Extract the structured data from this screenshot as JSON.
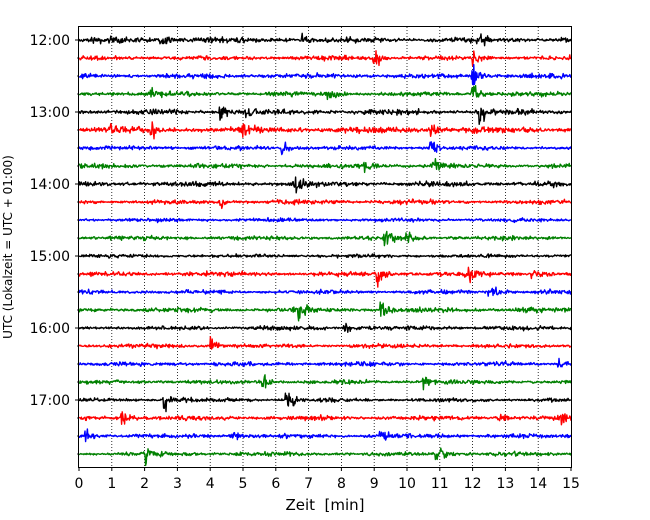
{
  "chart_data": {
    "type": "line",
    "subtype": "helicorder",
    "xlabel": "Zeit  [min]",
    "ylabel": "UTC (Lokalzeit = UTC + 01:00)",
    "xlim": [
      0,
      15
    ],
    "x_ticks": [
      0,
      1,
      2,
      3,
      4,
      5,
      6,
      7,
      8,
      9,
      10,
      11,
      12,
      13,
      14,
      15
    ],
    "y_tick_labels": [
      "12:00",
      "13:00",
      "14:00",
      "15:00",
      "16:00",
      "17:00"
    ],
    "start_time": "12:00",
    "trace_interval_min": 15,
    "trace_count": 24,
    "grid": "vertical-dotted",
    "color_cycle": [
      "#000000",
      "#ff0000",
      "#0000ff",
      "#008000"
    ],
    "traces": [
      {
        "start": "12:00",
        "color": "#000000",
        "noise": 0.25,
        "events": [
          {
            "t": 2.5,
            "amp": 0.55
          },
          {
            "t": 6.8,
            "amp": 0.3
          },
          {
            "t": 12.2,
            "amp": 0.3
          }
        ]
      },
      {
        "start": "12:15",
        "color": "#ff0000",
        "noise": 0.22,
        "events": [
          {
            "t": 9.0,
            "amp": 0.6
          },
          {
            "t": 12.0,
            "amp": 0.35
          }
        ]
      },
      {
        "start": "12:30",
        "color": "#0000ff",
        "noise": 0.24,
        "events": [
          {
            "t": 12.0,
            "amp": 0.6
          }
        ]
      },
      {
        "start": "12:45",
        "color": "#008000",
        "noise": 0.22,
        "events": [
          {
            "t": 2.2,
            "amp": 0.3
          },
          {
            "t": 7.6,
            "amp": 0.45
          },
          {
            "t": 12.0,
            "amp": 0.6
          }
        ]
      },
      {
        "start": "13:00",
        "color": "#000000",
        "noise": 0.25,
        "events": [
          {
            "t": 4.3,
            "amp": 0.45
          },
          {
            "t": 5.1,
            "amp": 0.3
          },
          {
            "t": 12.2,
            "amp": 0.8
          }
        ]
      },
      {
        "start": "13:15",
        "color": "#ff0000",
        "noise": 0.3,
        "events": [
          {
            "t": 1.0,
            "amp": 0.45
          },
          {
            "t": 2.2,
            "amp": 0.4
          },
          {
            "t": 5.0,
            "amp": 0.35
          },
          {
            "t": 10.7,
            "amp": 0.45
          }
        ]
      },
      {
        "start": "13:30",
        "color": "#0000ff",
        "noise": 0.2,
        "events": [
          {
            "t": 6.2,
            "amp": 0.6
          },
          {
            "t": 10.7,
            "amp": 0.6
          }
        ]
      },
      {
        "start": "13:45",
        "color": "#008000",
        "noise": 0.22,
        "events": [
          {
            "t": 8.7,
            "amp": 0.45
          },
          {
            "t": 10.8,
            "amp": 0.5
          }
        ]
      },
      {
        "start": "14:00",
        "color": "#000000",
        "noise": 0.24,
        "events": [
          {
            "t": 6.6,
            "amp": 0.45
          }
        ]
      },
      {
        "start": "14:15",
        "color": "#ff0000",
        "noise": 0.2,
        "events": [
          {
            "t": 4.3,
            "amp": 0.35
          }
        ]
      },
      {
        "start": "14:30",
        "color": "#0000ff",
        "noise": 0.18,
        "events": []
      },
      {
        "start": "14:45",
        "color": "#008000",
        "noise": 0.2,
        "events": [
          {
            "t": 9.3,
            "amp": 0.55
          },
          {
            "t": 10.0,
            "amp": 0.45
          }
        ]
      },
      {
        "start": "15:00",
        "color": "#000000",
        "noise": 0.18,
        "events": []
      },
      {
        "start": "15:15",
        "color": "#ff0000",
        "noise": 0.22,
        "events": [
          {
            "t": 9.1,
            "amp": 0.75
          },
          {
            "t": 11.9,
            "amp": 0.5
          },
          {
            "t": 13.8,
            "amp": 0.45
          }
        ]
      },
      {
        "start": "15:30",
        "color": "#0000ff",
        "noise": 0.2,
        "events": [
          {
            "t": 12.5,
            "amp": 0.55
          }
        ]
      },
      {
        "start": "15:45",
        "color": "#008000",
        "noise": 0.22,
        "events": [
          {
            "t": 6.7,
            "amp": 0.75
          },
          {
            "t": 9.2,
            "amp": 0.5
          }
        ]
      },
      {
        "start": "16:00",
        "color": "#000000",
        "noise": 0.2,
        "events": [
          {
            "t": 8.1,
            "amp": 0.35
          }
        ]
      },
      {
        "start": "16:15",
        "color": "#ff0000",
        "noise": 0.2,
        "events": [
          {
            "t": 4.0,
            "amp": 0.6
          }
        ]
      },
      {
        "start": "16:30",
        "color": "#0000ff",
        "noise": 0.2,
        "events": [
          {
            "t": 14.6,
            "amp": 0.35
          }
        ]
      },
      {
        "start": "16:45",
        "color": "#008000",
        "noise": 0.2,
        "events": [
          {
            "t": 5.6,
            "amp": 0.5
          },
          {
            "t": 10.5,
            "amp": 0.55
          }
        ]
      },
      {
        "start": "17:00",
        "color": "#000000",
        "noise": 0.18,
        "events": [
          {
            "t": 2.6,
            "amp": 0.75
          },
          {
            "t": 6.3,
            "amp": 0.65
          }
        ]
      },
      {
        "start": "17:15",
        "color": "#ff0000",
        "noise": 0.22,
        "events": [
          {
            "t": 1.3,
            "amp": 0.55
          },
          {
            "t": 12.8,
            "amp": 0.3
          },
          {
            "t": 14.7,
            "amp": 0.35
          }
        ]
      },
      {
        "start": "17:30",
        "color": "#0000ff",
        "noise": 0.22,
        "events": [
          {
            "t": 0.2,
            "amp": 0.45
          },
          {
            "t": 4.6,
            "amp": 0.35
          },
          {
            "t": 9.2,
            "amp": 0.4
          }
        ]
      },
      {
        "start": "17:45",
        "color": "#008000",
        "noise": 0.2,
        "events": [
          {
            "t": 2.0,
            "amp": 0.6
          },
          {
            "t": 10.9,
            "amp": 0.75
          }
        ]
      }
    ]
  }
}
